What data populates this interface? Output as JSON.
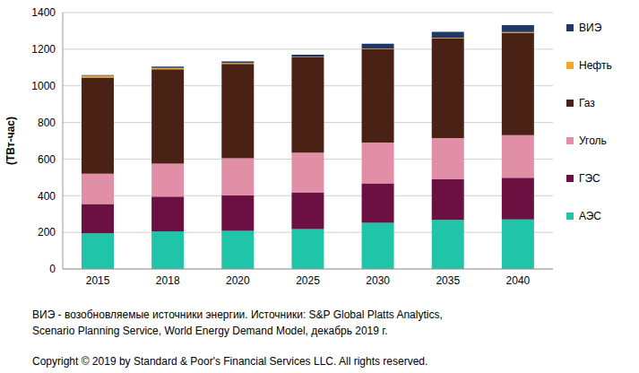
{
  "chart_data": {
    "type": "bar",
    "stacked": true,
    "y_label": "(ТВт-час)",
    "categories": [
      "2015",
      "2018",
      "2020",
      "2025",
      "2030",
      "2035",
      "2040"
    ],
    "series": [
      {
        "name": "АЭС",
        "color": "#20c4a8",
        "values": [
          195,
          205,
          208,
          218,
          252,
          268,
          270
        ]
      },
      {
        "name": "ГЭС",
        "color": "#6b1040",
        "values": [
          160,
          190,
          195,
          200,
          215,
          222,
          228
        ]
      },
      {
        "name": "Уголь",
        "color": "#e08fa6",
        "values": [
          165,
          180,
          202,
          217,
          223,
          225,
          232
        ]
      },
      {
        "name": "Газ",
        "color": "#4a2215",
        "values": [
          525,
          515,
          515,
          520,
          510,
          545,
          560
        ]
      },
      {
        "name": "Нефть",
        "color": "#f5a623",
        "values": [
          10,
          8,
          5,
          3,
          3,
          3,
          3
        ]
      },
      {
        "name": "ВИЭ",
        "color": "#1f3864",
        "values": [
          3,
          7,
          8,
          12,
          27,
          32,
          38
        ]
      }
    ],
    "ylim": [
      0,
      1400
    ],
    "yticks": [
      0,
      200,
      400,
      600,
      800,
      1000,
      1200,
      1400
    ],
    "grid": true,
    "legend": "right",
    "notes": [
      "ВИЭ - возобновляемые источники энергии. Источники: S&P Global Platts Analytics,",
      "Scenario Planning Service,  World Energy Demand Model, декабрь 2019 г.",
      "Copyright © 2019 by Standard & Poor's Financial Services LLC. All rights reserved."
    ]
  }
}
